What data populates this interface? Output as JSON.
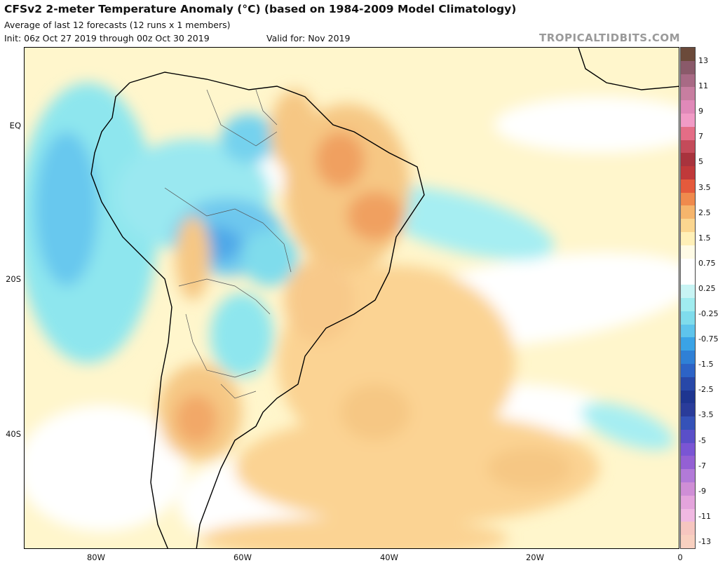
{
  "header": {
    "title": "CFSv2 2-meter Temperature Anomaly (°C) (based on 1984-2009 Model Climatology)",
    "subtitle": "Average of last 12 forecasts (12 runs x 1 members)",
    "init": "Init: 06z Oct 27 2019 through 00z Oct 30 2019",
    "valid": "Valid for: Nov 2019",
    "brand": "TROPICALTIDBITS.COM"
  },
  "axes": {
    "lat_labels": [
      "EQ",
      "20S",
      "40S"
    ],
    "lon_labels": [
      "80W",
      "60W",
      "40W",
      "20W",
      "0"
    ]
  },
  "colorbar": {
    "labels": [
      "13",
      "11",
      "9",
      "7",
      "5",
      "3.5",
      "2.5",
      "1.5",
      "0.75",
      "0.25",
      "-0.25",
      "-0.75",
      "-1.5",
      "-2.5",
      "-3.5",
      "-5",
      "-7",
      "-9",
      "-11",
      "-13"
    ],
    "colors": [
      "#6b4a3a",
      "#8a5a6a",
      "#a86a85",
      "#c77ea0",
      "#e089b9",
      "#f19bc6",
      "#e46d86",
      "#c44b5a",
      "#a8333d",
      "#c0393a",
      "#e55a3c",
      "#f08a4d",
      "#f6b56c",
      "#fbd690",
      "#fff0b8",
      "#fffbe6",
      "#ffffff",
      "#ffffff",
      "#c8f4f4",
      "#a0ecef",
      "#7fdcec",
      "#5ec4ec",
      "#3aa3e6",
      "#2f80d6",
      "#2d63c6",
      "#2848a8",
      "#1e3590",
      "#2a3c9a",
      "#3552b8",
      "#5a4fc8",
      "#7a55d4",
      "#9460d4",
      "#b27ad8",
      "#cf8ed6",
      "#e4a4dc",
      "#f0b9e2",
      "#f6c6c0",
      "#f8d0c0"
    ]
  }
}
